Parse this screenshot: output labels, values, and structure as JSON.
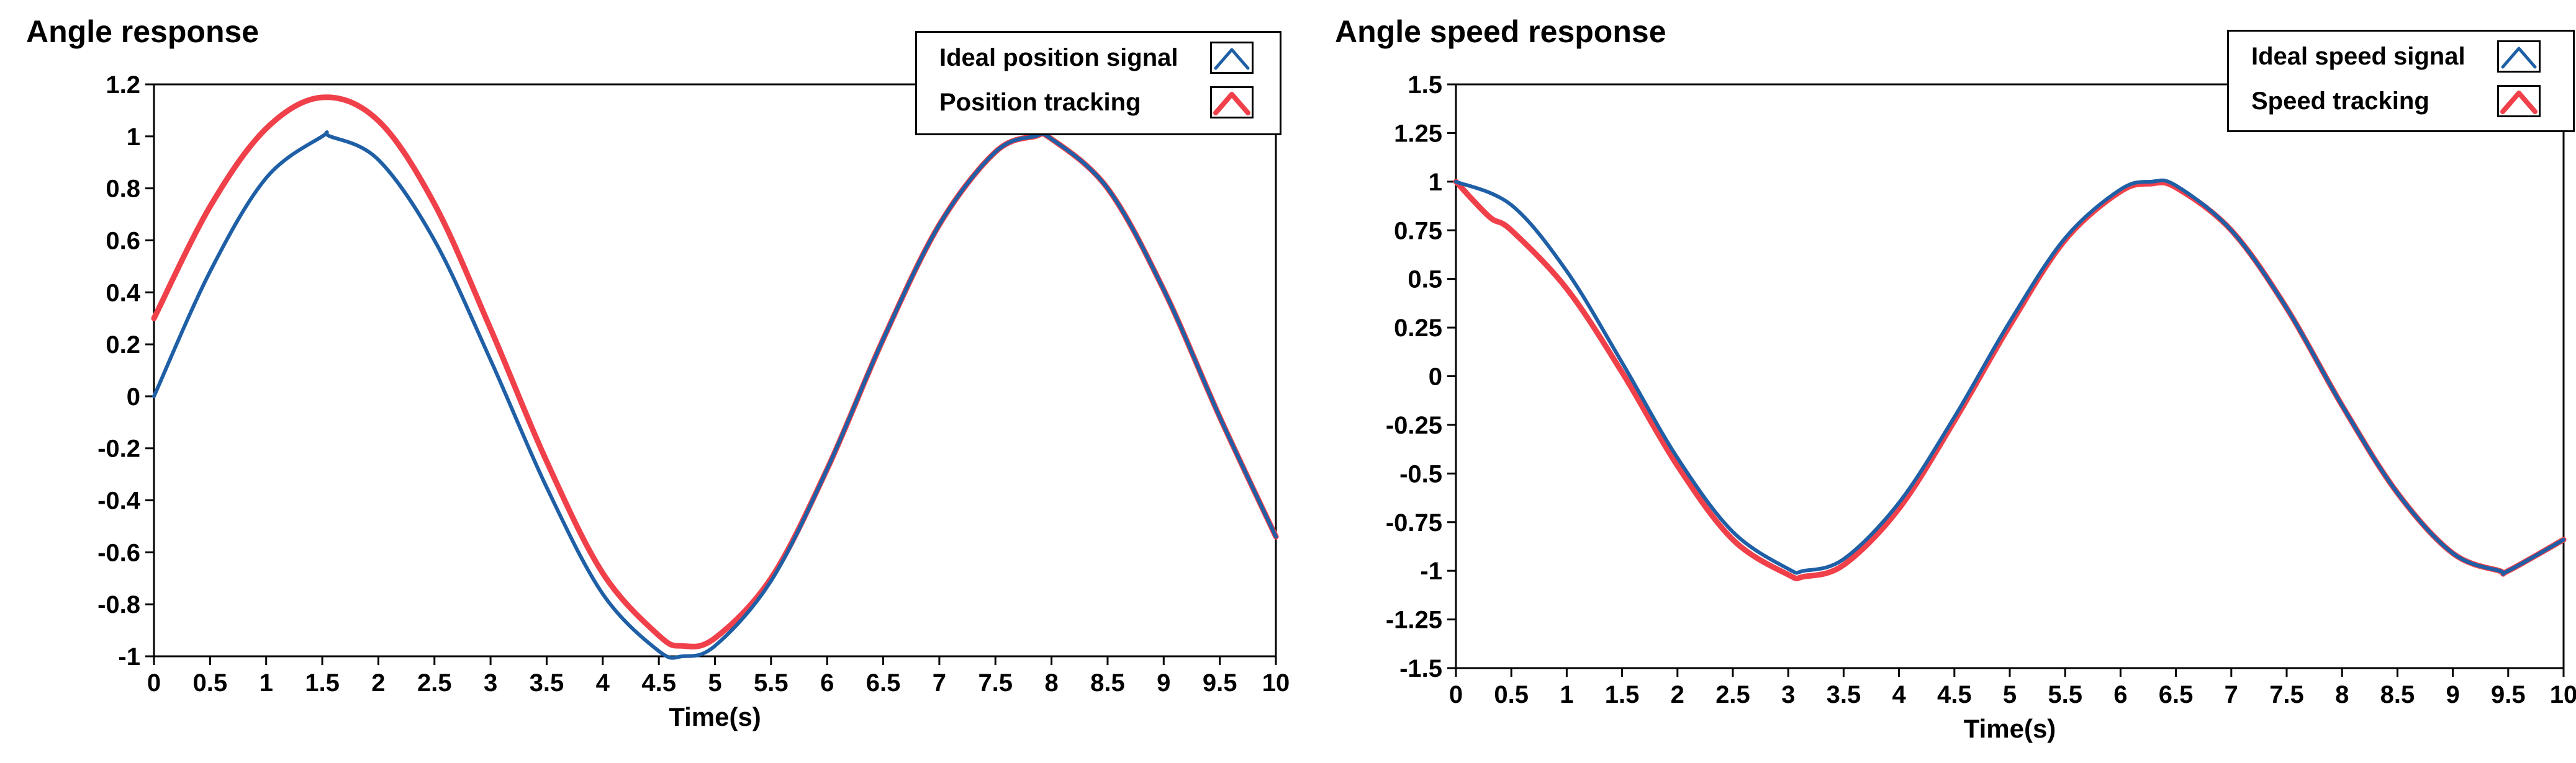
{
  "colors": {
    "ideal": "#1f5fa6",
    "tracking": "#f0404a",
    "axis": "#000000"
  },
  "chart_data": [
    {
      "type": "line",
      "title": "Angle response",
      "xlabel": "Time(s)",
      "ylabel": "",
      "xlim": [
        0,
        10
      ],
      "ylim": [
        -1,
        1.2
      ],
      "x_ticks": [
        0,
        0.5,
        1,
        1.5,
        2,
        2.5,
        3,
        3.5,
        4,
        4.5,
        5,
        5.5,
        6,
        6.5,
        7,
        7.5,
        8,
        8.5,
        9,
        9.5,
        10
      ],
      "x_tick_labels": [
        "0",
        "0.5",
        "1",
        "1.5",
        "2",
        "2.5",
        "3",
        "3.5",
        "4",
        "4.5",
        "5",
        "5.5",
        "6",
        "6.5",
        "7",
        "7.5",
        "8",
        "8.5",
        "9",
        "9.5",
        "10"
      ],
      "y_ticks": [
        -1,
        -0.8,
        -0.6,
        -0.4,
        -0.2,
        0,
        0.2,
        0.4,
        0.6,
        0.8,
        1,
        1.2
      ],
      "y_tick_labels": [
        "-1",
        "-0.8",
        "-0.6",
        "-0.4",
        "-0.2",
        "0",
        "0.2",
        "0.4",
        "0.6",
        "0.8",
        "1",
        "1.2"
      ],
      "legend": {
        "position": "top-right",
        "entries": [
          "Ideal position signal",
          "Position tracking"
        ]
      },
      "series": [
        {
          "name": "Ideal position signal",
          "color_key": "ideal",
          "x": [
            0,
            0.5,
            1,
            1.5,
            1.57,
            2,
            2.5,
            3,
            3.5,
            4,
            4.5,
            4.71,
            5,
            5.5,
            6,
            6.5,
            7,
            7.5,
            7.85,
            8,
            8.5,
            9,
            9.5,
            10
          ],
          "y": [
            0,
            0.48,
            0.84,
            1.0,
            1.0,
            0.91,
            0.6,
            0.14,
            -0.35,
            -0.76,
            -0.98,
            -1.0,
            -0.96,
            -0.71,
            -0.28,
            0.22,
            0.66,
            0.94,
            1.0,
            0.99,
            0.8,
            0.41,
            -0.08,
            -0.54
          ]
        },
        {
          "name": "Position tracking",
          "color_key": "tracking",
          "x": [
            0,
            0.5,
            1,
            1.5,
            2,
            2.5,
            3,
            3.5,
            4,
            4.5,
            4.71,
            5,
            5.5,
            6,
            6.5,
            7,
            7.5,
            7.85,
            8,
            8.5,
            9,
            9.5,
            10
          ],
          "y": [
            0.3,
            0.73,
            1.03,
            1.15,
            1.06,
            0.74,
            0.26,
            -0.25,
            -0.68,
            -0.92,
            -0.96,
            -0.93,
            -0.7,
            -0.28,
            0.22,
            0.66,
            0.94,
            1.0,
            0.99,
            0.8,
            0.41,
            -0.08,
            -0.54
          ]
        }
      ]
    },
    {
      "type": "line",
      "title": "Angle speed response",
      "xlabel": "Time(s)",
      "ylabel": "",
      "xlim": [
        0,
        10
      ],
      "ylim": [
        -1.5,
        1.5
      ],
      "x_ticks": [
        0,
        0.5,
        1,
        1.5,
        2,
        2.5,
        3,
        3.5,
        4,
        4.5,
        5,
        5.5,
        6,
        6.5,
        7,
        7.5,
        8,
        8.5,
        9,
        9.5,
        10
      ],
      "x_tick_labels": [
        "0",
        "0.5",
        "1",
        "1.5",
        "2",
        "2.5",
        "3",
        "3.5",
        "4",
        "4.5",
        "5",
        "5.5",
        "6",
        "6.5",
        "7",
        "7.5",
        "8",
        "8.5",
        "9",
        "9.5",
        "10"
      ],
      "y_ticks": [
        -1.5,
        -1.25,
        -1,
        -0.75,
        -0.5,
        -0.25,
        0,
        0.25,
        0.5,
        0.75,
        1,
        1.25,
        1.5
      ],
      "y_tick_labels": [
        "-1.5",
        "-1.25",
        "-1",
        "-0.75",
        "-0.5",
        "-0.25",
        "0",
        "0.25",
        "0.5",
        "0.75",
        "1",
        "1.25",
        "1.5"
      ],
      "legend": {
        "position": "top-right",
        "entries": [
          "Ideal speed signal",
          "Speed tracking"
        ]
      },
      "series": [
        {
          "name": "Ideal speed signal",
          "color_key": "ideal",
          "x": [
            0,
            0.5,
            1,
            1.5,
            2,
            2.5,
            3,
            3.14,
            3.5,
            4,
            4.5,
            5,
            5.5,
            6,
            6.28,
            6.5,
            7,
            7.5,
            8,
            8.5,
            9,
            9.42,
            9.5,
            10
          ],
          "y": [
            1.0,
            0.88,
            0.54,
            0.07,
            -0.42,
            -0.8,
            -0.99,
            -1.0,
            -0.94,
            -0.65,
            -0.21,
            0.28,
            0.71,
            0.96,
            1.0,
            0.98,
            0.75,
            0.35,
            -0.15,
            -0.6,
            -0.91,
            -1.0,
            -1.0,
            -0.84
          ]
        },
        {
          "name": "Speed tracking",
          "color_key": "tracking",
          "x": [
            0,
            0.3,
            0.5,
            1,
            1.5,
            2,
            2.5,
            3,
            3.14,
            3.5,
            4,
            4.5,
            5,
            5.5,
            6,
            6.28,
            6.5,
            7,
            7.5,
            8,
            8.5,
            9,
            9.42,
            9.5,
            10
          ],
          "y": [
            1.0,
            0.82,
            0.75,
            0.45,
            0.02,
            -0.46,
            -0.84,
            -1.02,
            -1.03,
            -0.97,
            -0.68,
            -0.23,
            0.26,
            0.7,
            0.95,
            0.99,
            0.97,
            0.75,
            0.35,
            -0.15,
            -0.6,
            -0.91,
            -1.0,
            -1.0,
            -0.84
          ]
        }
      ]
    }
  ]
}
